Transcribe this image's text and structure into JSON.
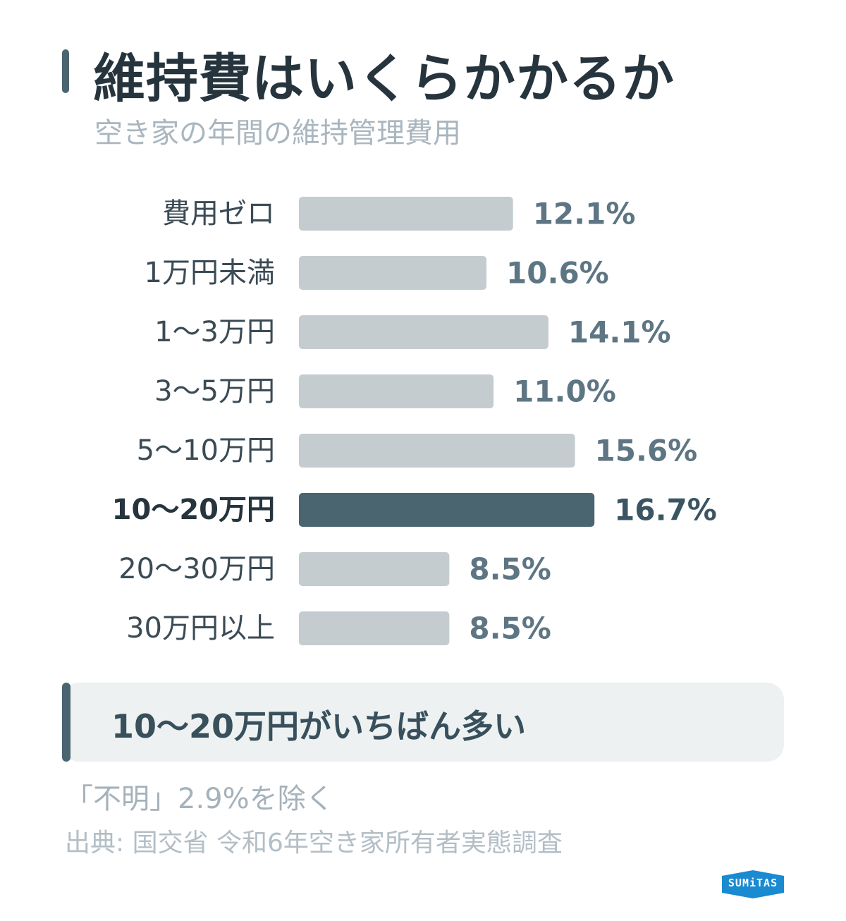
{
  "header": {
    "title": "維持費はいくらかかるか",
    "subtitle": "空き家の年間の維持管理費用"
  },
  "colors": {
    "bar_default": "#c5ccd0",
    "bar_highlight": "#4a6470",
    "label_default": "#3b4b55",
    "value_default": "#5e7683",
    "value_highlight": "#3b5562",
    "accent": "#4a6470",
    "logo": "#1a8ad1"
  },
  "chart_data": {
    "type": "bar",
    "orientation": "horizontal",
    "categories": [
      "費用ゼロ",
      "1万円未満",
      "1〜3万円",
      "3〜5万円",
      "5〜10万円",
      "10〜20万円",
      "20〜30万円",
      "30万円以上"
    ],
    "values": [
      12.1,
      10.6,
      14.1,
      11.0,
      15.6,
      16.7,
      8.5,
      8.5
    ],
    "value_labels": [
      "12.1%",
      "10.6%",
      "14.1%",
      "11.0%",
      "15.6%",
      "16.7%",
      "8.5%",
      "8.5%"
    ],
    "highlight_index": 5,
    "unit": "%",
    "title": "",
    "xlabel": "",
    "ylabel": "",
    "grid": false,
    "legend": "none"
  },
  "callout": {
    "text": "10〜20万円がいちばん多い"
  },
  "footer": {
    "note": "「不明」2.9%を除く",
    "source": "出典: 国交省 令和6年空き家所有者実態調査"
  },
  "logo": {
    "text": "SUMiTAS"
  }
}
